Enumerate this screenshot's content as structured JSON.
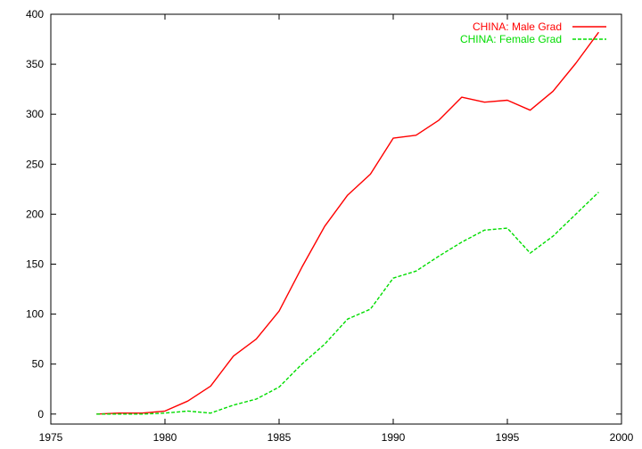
{
  "chart_data": {
    "type": "line",
    "title": "",
    "xlabel": "",
    "ylabel": "",
    "xlim": [
      1975,
      2000
    ],
    "ylim": [
      -10,
      400
    ],
    "xticks": [
      1975,
      1980,
      1985,
      1990,
      1995,
      2000
    ],
    "yticks": [
      0,
      50,
      100,
      150,
      200,
      250,
      300,
      350,
      400
    ],
    "x_tick_labels": [
      "1975",
      "1980",
      "1985",
      "1990",
      "1995",
      "2000"
    ],
    "y_tick_labels": [
      "0",
      "50",
      "100",
      "150",
      "200",
      "250",
      "300",
      "350",
      "400"
    ],
    "grid": false,
    "legend_position": "top-right",
    "x": [
      1977,
      1978,
      1979,
      1980,
      1981,
      1982,
      1983,
      1984,
      1985,
      1986,
      1987,
      1988,
      1989,
      1990,
      1991,
      1992,
      1993,
      1994,
      1995,
      1996,
      1997,
      1998,
      1999
    ],
    "series": [
      {
        "name": "CHINA: Male Grad",
        "color": "#ff0000",
        "style": "solid",
        "values": [
          0,
          1,
          1,
          3,
          13,
          28,
          58,
          75,
          103,
          147,
          188,
          219,
          240,
          276,
          279,
          294,
          317,
          312,
          314,
          304,
          323,
          351,
          382
        ]
      },
      {
        "name": "CHINA: Female Grad",
        "color": "#00dd00",
        "style": "dashed",
        "values": [
          0,
          0,
          0,
          1,
          3,
          1,
          9,
          15,
          27,
          50,
          70,
          95,
          105,
          136,
          143,
          158,
          172,
          184,
          186,
          161,
          178,
          200,
          222
        ]
      }
    ]
  }
}
